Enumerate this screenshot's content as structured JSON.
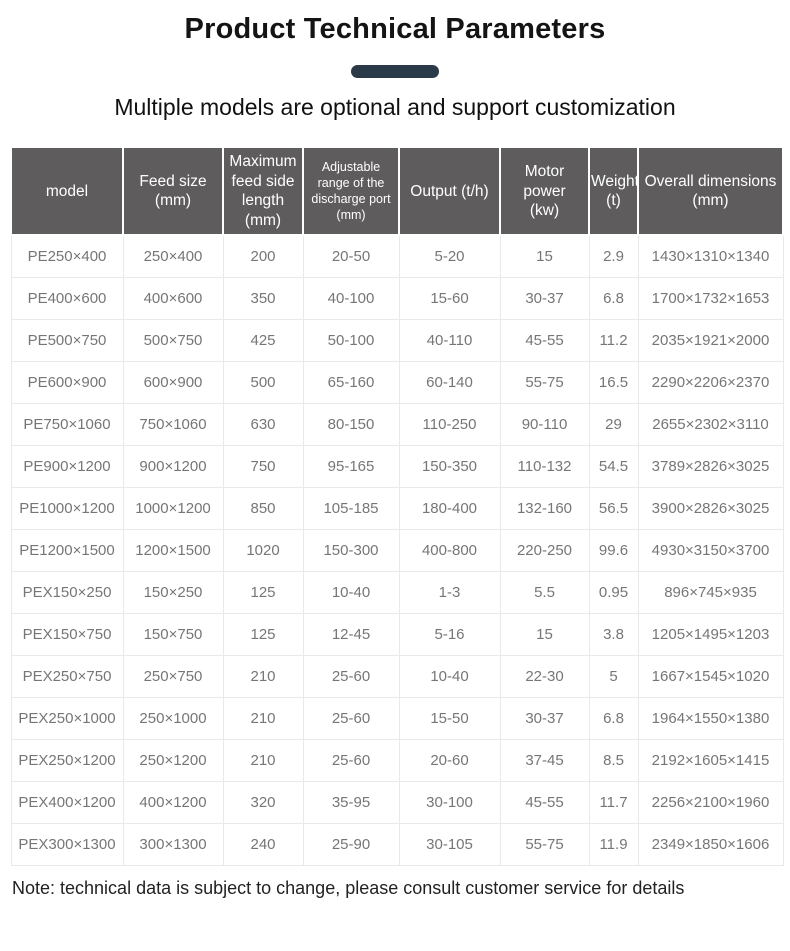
{
  "header": {
    "title": "Product Technical Parameters",
    "subtitle": "Multiple models are optional and support customization"
  },
  "colors": {
    "accent_bar": "#2b3a49",
    "table_header_bg": "#5e5c5c",
    "table_header_text": "#ffffff",
    "body_text": "#767676",
    "grid_border": "#e9e9e9"
  },
  "table": {
    "columns": [
      {
        "key": "model",
        "label": "model"
      },
      {
        "key": "feed_size",
        "label": "Feed size\n(mm)"
      },
      {
        "key": "max_feed_side_length",
        "label": "Maximum\nfeed side\nlength\n(mm)"
      },
      {
        "key": "discharge_port_range",
        "label": "Adjustable\nrange of the\ndischarge port\n(mm)"
      },
      {
        "key": "output",
        "label": "Output (t/h)"
      },
      {
        "key": "motor_power",
        "label": "Motor\npower\n(kw)"
      },
      {
        "key": "weight",
        "label": "Weight\n(t)"
      },
      {
        "key": "overall_dimensions",
        "label": "Overall dimensions\n(mm)"
      }
    ],
    "rows": [
      [
        "PE250×400",
        "250×400",
        "200",
        "20-50",
        "5-20",
        "15",
        "2.9",
        "1430×1310×1340"
      ],
      [
        "PE400×600",
        "400×600",
        "350",
        "40-100",
        "15-60",
        "30-37",
        "6.8",
        "1700×1732×1653"
      ],
      [
        "PE500×750",
        "500×750",
        "425",
        "50-100",
        "40-110",
        "45-55",
        "11.2",
        "2035×1921×2000"
      ],
      [
        "PE600×900",
        "600×900",
        "500",
        "65-160",
        "60-140",
        "55-75",
        "16.5",
        "2290×2206×2370"
      ],
      [
        "PE750×1060",
        "750×1060",
        "630",
        "80-150",
        "110-250",
        "90-110",
        "29",
        "2655×2302×3110"
      ],
      [
        "PE900×1200",
        "900×1200",
        "750",
        "95-165",
        "150-350",
        "110-132",
        "54.5",
        "3789×2826×3025"
      ],
      [
        "PE1000×1200",
        "1000×1200",
        "850",
        "105-185",
        "180-400",
        "132-160",
        "56.5",
        "3900×2826×3025"
      ],
      [
        "PE1200×1500",
        "1200×1500",
        "1020",
        "150-300",
        "400-800",
        "220-250",
        "99.6",
        "4930×3150×3700"
      ],
      [
        "PEX150×250",
        "150×250",
        "125",
        "10-40",
        "1-3",
        "5.5",
        "0.95",
        "896×745×935"
      ],
      [
        "PEX150×750",
        "150×750",
        "125",
        "12-45",
        "5-16",
        "15",
        "3.8",
        "1205×1495×1203"
      ],
      [
        "PEX250×750",
        "250×750",
        "210",
        "25-60",
        "10-40",
        "22-30",
        "5",
        "1667×1545×1020"
      ],
      [
        "PEX250×1000",
        "250×1000",
        "210",
        "25-60",
        "15-50",
        "30-37",
        "6.8",
        "1964×1550×1380"
      ],
      [
        "PEX250×1200",
        "250×1200",
        "210",
        "25-60",
        "20-60",
        "37-45",
        "8.5",
        "2192×1605×1415"
      ],
      [
        "PEX400×1200",
        "400×1200",
        "320",
        "35-95",
        "30-100",
        "45-55",
        "11.7",
        "2256×2100×1960"
      ],
      [
        "PEX300×1300",
        "300×1300",
        "240",
        "25-90",
        "30-105",
        "55-75",
        "11.9",
        "2349×1850×1606"
      ]
    ]
  },
  "footer": {
    "note": "Note: technical data is subject to change, please consult customer service for details"
  }
}
